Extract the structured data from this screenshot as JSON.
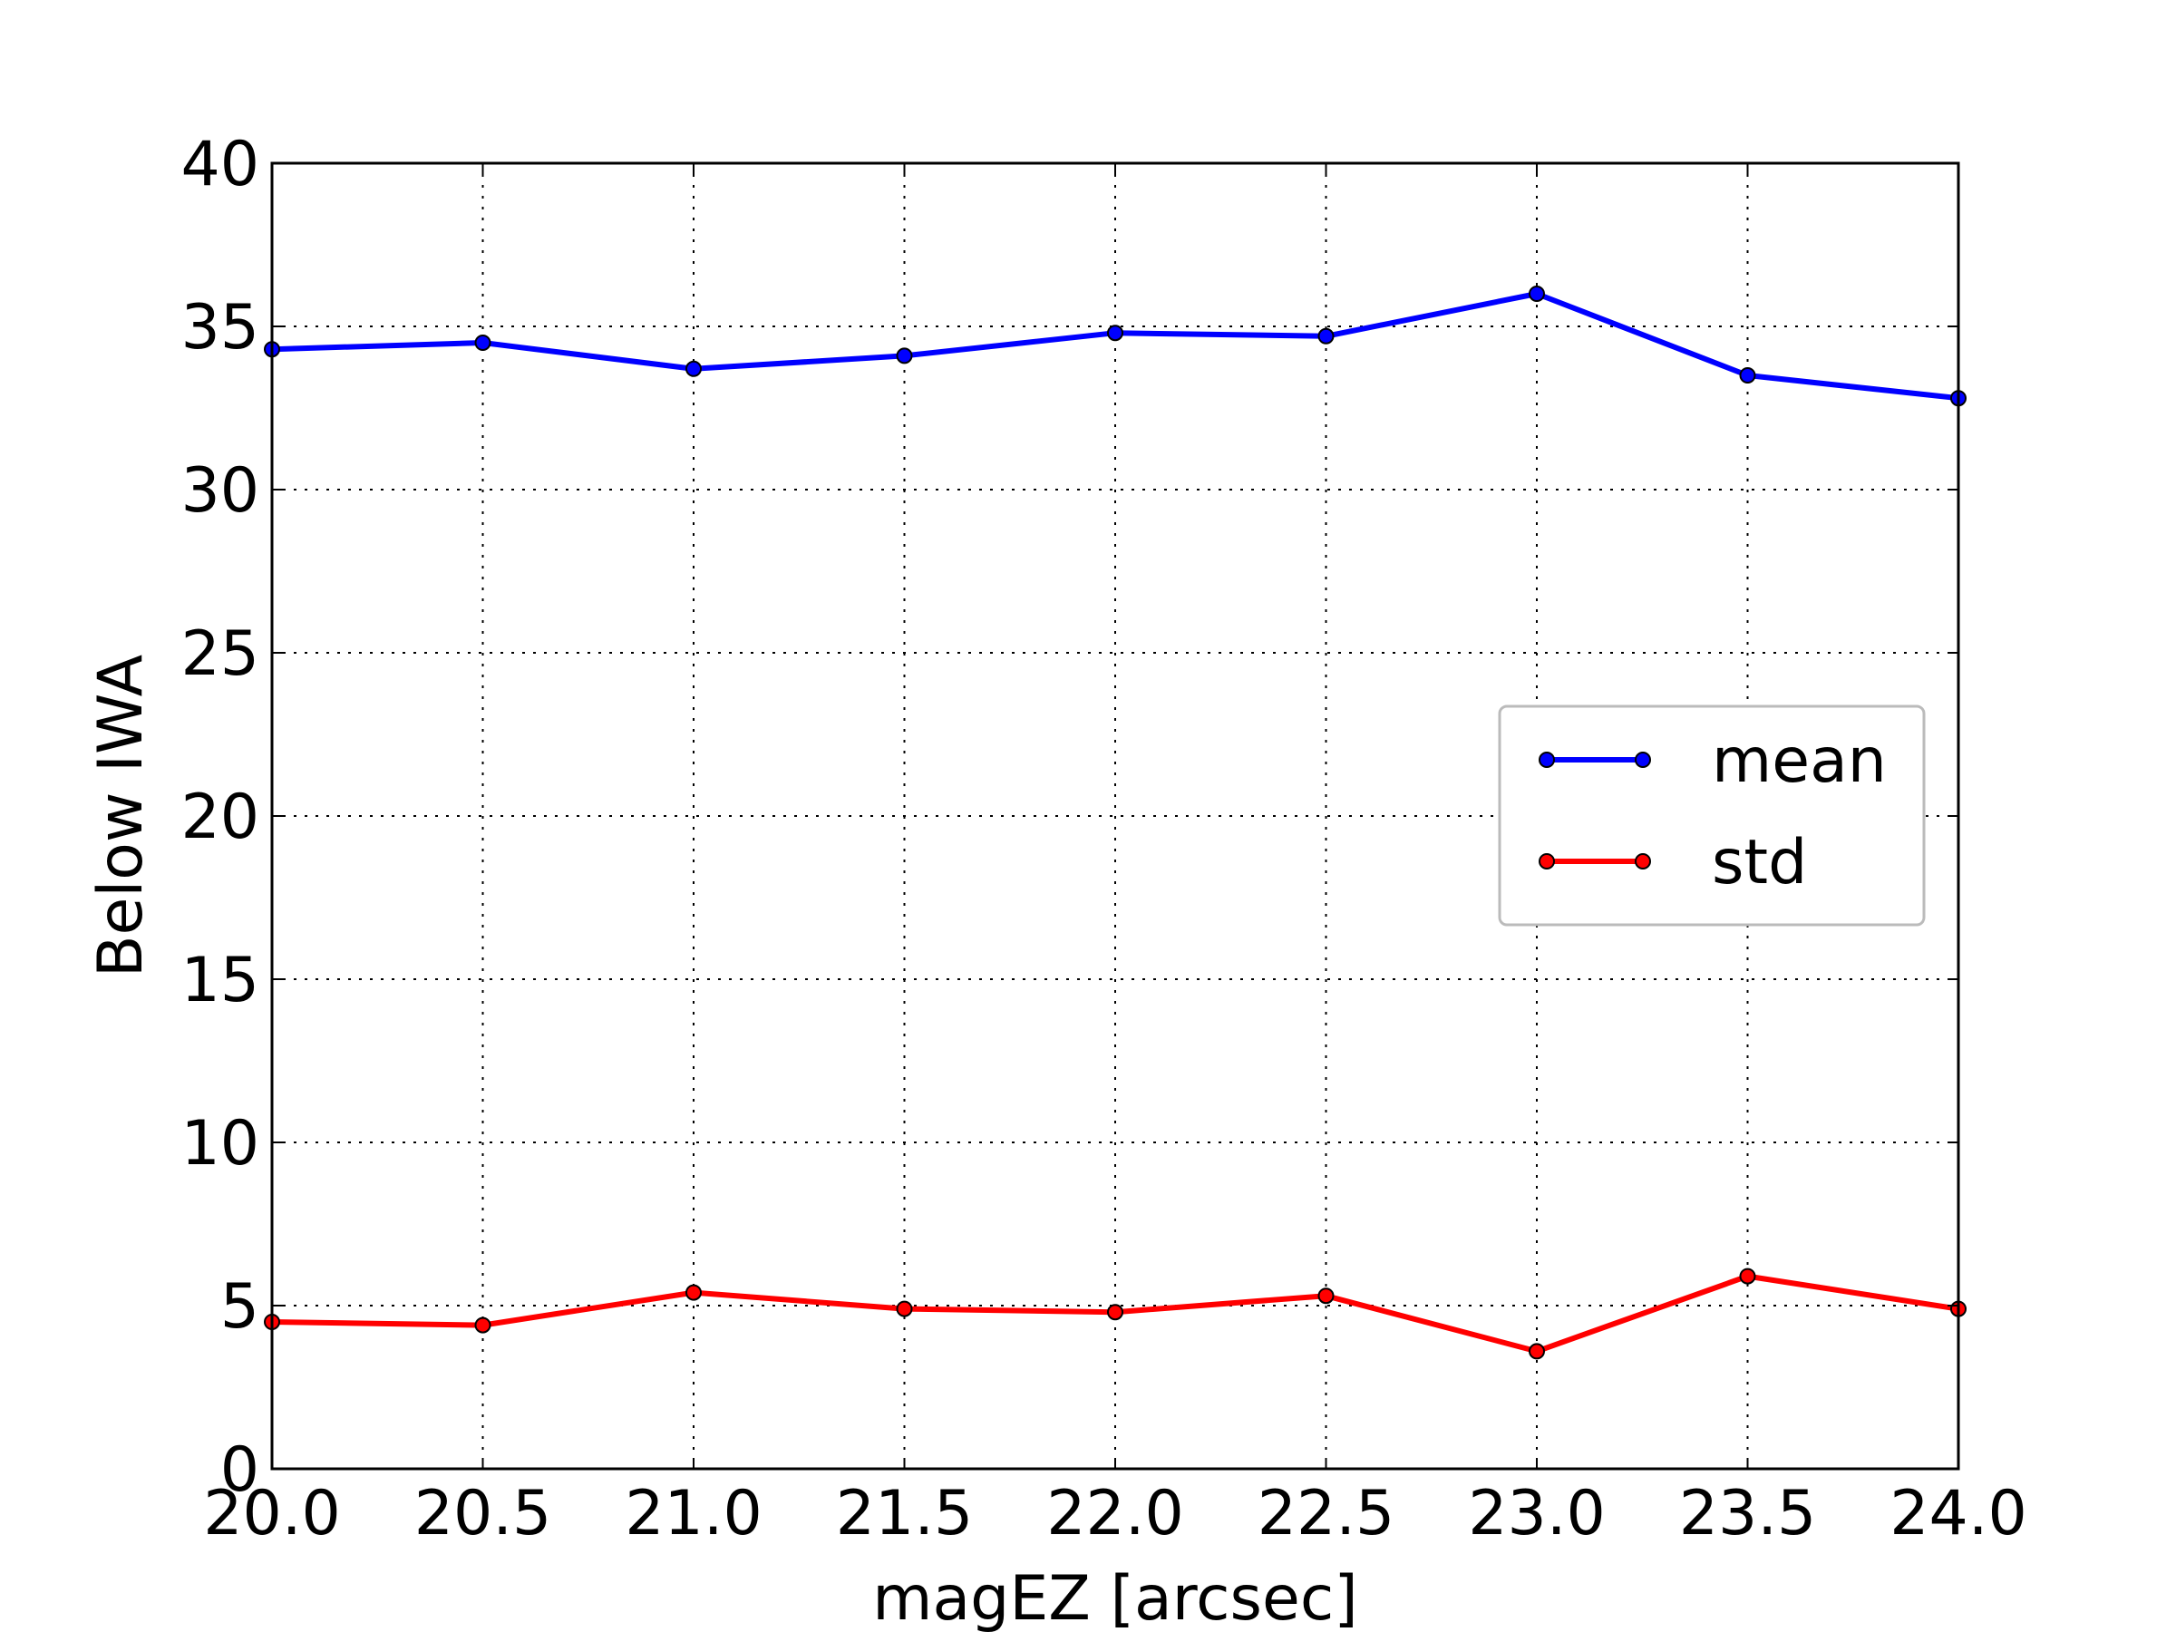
{
  "chart_data": {
    "type": "line",
    "title": "",
    "xlabel": "magEZ [arcsec]",
    "ylabel": "Below IWA",
    "xlim": [
      20.0,
      24.0
    ],
    "ylim": [
      0,
      40
    ],
    "xticks": [
      "20.0",
      "20.5",
      "21.0",
      "21.5",
      "22.0",
      "22.5",
      "23.0",
      "23.5",
      "24.0"
    ],
    "yticks": [
      "0",
      "5",
      "10",
      "15",
      "20",
      "25",
      "30",
      "35",
      "40"
    ],
    "grid": true,
    "legend_position": "center-right",
    "x": [
      20.0,
      20.5,
      21.0,
      21.5,
      22.0,
      22.5,
      23.0,
      23.5,
      24.0
    ],
    "series": [
      {
        "name": "mean",
        "color": "#0000ff",
        "marker": "circle",
        "values": [
          34.3,
          34.5,
          33.7,
          34.1,
          34.8,
          34.7,
          36.0,
          33.5,
          32.8
        ]
      },
      {
        "name": "std",
        "color": "#ff0000",
        "marker": "circle",
        "values": [
          4.5,
          4.4,
          5.4,
          4.9,
          4.8,
          5.3,
          3.6,
          5.9,
          4.9
        ]
      }
    ]
  }
}
